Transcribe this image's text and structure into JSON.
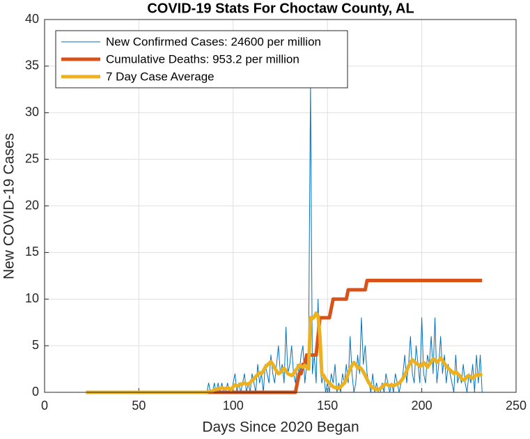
{
  "chart_data": {
    "type": "line",
    "title": "COVID-19 Stats For Choctaw County, AL",
    "x_label": "Days Since 2020 Began",
    "y_label": "New COVID-19 Cases",
    "xlim": [
      0,
      250
    ],
    "xticks": [
      0,
      50,
      100,
      150,
      200,
      250
    ],
    "ylim": [
      0,
      40
    ],
    "yticks": [
      0,
      5,
      10,
      15,
      20,
      25,
      30,
      35,
      40
    ],
    "grid": true,
    "legend": "top-left",
    "x": [
      22,
      85,
      86,
      87,
      88,
      89,
      90,
      91,
      92,
      93,
      94,
      95,
      96,
      97,
      98,
      99,
      100,
      101,
      102,
      103,
      104,
      105,
      106,
      107,
      108,
      109,
      110,
      111,
      112,
      113,
      114,
      115,
      116,
      117,
      118,
      119,
      120,
      121,
      122,
      123,
      124,
      125,
      126,
      127,
      128,
      129,
      130,
      131,
      132,
      133,
      134,
      135,
      136,
      137,
      138,
      139,
      140,
      141,
      142,
      143,
      144,
      145,
      146,
      147,
      148,
      149,
      150,
      151,
      152,
      153,
      154,
      155,
      156,
      157,
      158,
      159,
      160,
      161,
      162,
      163,
      164,
      165,
      166,
      167,
      168,
      169,
      170,
      171,
      172,
      173,
      174,
      175,
      176,
      177,
      178,
      179,
      180,
      181,
      182,
      183,
      184,
      185,
      186,
      187,
      188,
      189,
      190,
      191,
      192,
      193,
      194,
      195,
      196,
      197,
      198,
      199,
      200,
      201,
      202,
      203,
      204,
      205,
      206,
      207,
      208,
      209,
      210,
      211,
      212,
      213,
      214,
      215,
      216,
      217,
      218,
      219,
      220,
      221,
      222,
      223,
      224,
      225,
      226,
      227,
      228,
      229,
      230,
      231,
      232
    ],
    "series": [
      {
        "name": "New Confirmed Cases: 24600 per million",
        "color": "#0072bd",
        "width": 1,
        "values": [
          0,
          0,
          0,
          1,
          0,
          0,
          1,
          0,
          1,
          0,
          1,
          0,
          0,
          1,
          0,
          0,
          1,
          2,
          0,
          1,
          0,
          1,
          2,
          0,
          1,
          0,
          2,
          1,
          0,
          3,
          1,
          2,
          0,
          3,
          2,
          1,
          4,
          2,
          1,
          3,
          5,
          2,
          3,
          1,
          7,
          2,
          3,
          5,
          2,
          1,
          3,
          2,
          4,
          5,
          1,
          3,
          5,
          33,
          2,
          4,
          1,
          10,
          3,
          1,
          2,
          0,
          1,
          0,
          2,
          1,
          3,
          0,
          1,
          0,
          2,
          1,
          3,
          1,
          6,
          2,
          0,
          1,
          4,
          2,
          8,
          3,
          5,
          2,
          1,
          0,
          2,
          0,
          1,
          0,
          0,
          1,
          0,
          2,
          1,
          0,
          1,
          0,
          2,
          1,
          0,
          1,
          2,
          4,
          1,
          3,
          6,
          2,
          1,
          5,
          3,
          1,
          8,
          2,
          1,
          4,
          3,
          6,
          2,
          8,
          1,
          3,
          6,
          2,
          4,
          1,
          3,
          2,
          1,
          0,
          4,
          1,
          2,
          1,
          3,
          1,
          0,
          2,
          1,
          3,
          0,
          4,
          1,
          4,
          0
        ]
      },
      {
        "name": "Cumulative Deaths: 953.2 per million",
        "color": "#d95319",
        "width": 5,
        "values": [
          0,
          0,
          0,
          0,
          0,
          0,
          0,
          0,
          0,
          0,
          0,
          0,
          0,
          0,
          0,
          0,
          0,
          0,
          0,
          0,
          0,
          0,
          0,
          0,
          0,
          0,
          0,
          0,
          0,
          0,
          0,
          0,
          0,
          0,
          0,
          0,
          0,
          0,
          0,
          0,
          0,
          0,
          0,
          0,
          0,
          0,
          0,
          0,
          0,
          0,
          1,
          2,
          2,
          3,
          3,
          4,
          4,
          4,
          4,
          4,
          4,
          6,
          8,
          8,
          8,
          8,
          8,
          8,
          9,
          10,
          10,
          10,
          10,
          10,
          10,
          10,
          10,
          11,
          11,
          11,
          11,
          11,
          11,
          11,
          11,
          11,
          11,
          12,
          12,
          12,
          12,
          12,
          12,
          12,
          12,
          12,
          12,
          12,
          12,
          12,
          12,
          12,
          12,
          12,
          12,
          12,
          12,
          12,
          12,
          12,
          12,
          12,
          12,
          12,
          12,
          12,
          12,
          12,
          12,
          12,
          12,
          12,
          12,
          12,
          12,
          12,
          12,
          12,
          12,
          12,
          12,
          12,
          12,
          12,
          12,
          12,
          12,
          12,
          12,
          12,
          12,
          12,
          12,
          12,
          12,
          12,
          12,
          12,
          12
        ]
      },
      {
        "name": "7 Day Case Average",
        "color": "#edb120",
        "width": 5,
        "values": [
          0,
          0,
          0,
          0.1,
          0.1,
          0.1,
          0.3,
          0.3,
          0.4,
          0.4,
          0.5,
          0.4,
          0.4,
          0.5,
          0.4,
          0.3,
          0.6,
          0.8,
          0.7,
          0.7,
          0.9,
          0.9,
          1,
          0.9,
          0.9,
          1,
          1.3,
          1.4,
          1.7,
          1.9,
          2.1,
          2,
          2.3,
          2.7,
          2.9,
          3.1,
          3.3,
          3,
          2.6,
          2.3,
          2,
          2.1,
          2.4,
          2.6,
          2.3,
          2,
          1.9,
          1.8,
          2,
          2.3,
          2.6,
          2.9,
          2.8,
          2.7,
          2.9,
          2.7,
          2.5,
          8,
          7.9,
          8.1,
          8.5,
          8.2,
          6,
          2,
          1.8,
          1.4,
          1.2,
          1,
          0.8,
          0.6,
          0.5,
          0.5,
          0.4,
          0.6,
          0.8,
          1,
          1.4,
          2,
          2.5,
          2.9,
          3.2,
          3,
          2.6,
          2.7,
          2.5,
          2.2,
          1.8,
          1.4,
          1,
          0.7,
          0.5,
          0.4,
          0.3,
          0.3,
          0.4,
          0.6,
          0.8,
          0.9,
          0.8,
          0.7,
          0.8,
          0.7,
          0.8,
          0.9,
          1,
          1.2,
          1.5,
          1.9,
          2.3,
          2.8,
          3.2,
          3.5,
          3.3,
          3.1,
          3,
          2.8,
          2.9,
          3.2,
          3,
          2.7,
          3,
          3.3,
          3.6,
          3.5,
          3.2,
          3.4,
          3.7,
          3.4,
          3.1,
          2.8,
          2.6,
          2.4,
          2.2,
          2,
          2.2,
          2,
          1.8,
          1.5,
          1.3,
          1.4,
          1.7,
          1.8,
          1.6,
          1.5,
          1.7,
          1.9,
          1.8,
          1.9,
          2
        ]
      }
    ]
  }
}
